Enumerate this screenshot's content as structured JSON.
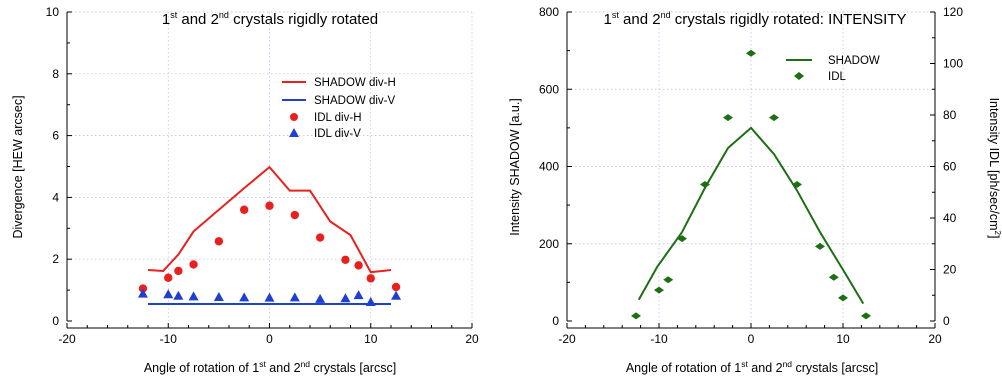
{
  "chart_data": [
    {
      "type": "scatter",
      "title": {
        "pre": "1",
        "sup1": "st",
        "mid": " and 2",
        "sup2": "nd",
        "post": " crystals rigidly rotated"
      },
      "xlabel": {
        "pre": "Angle of rotation of 1",
        "sup1": "st",
        "mid": " and 2",
        "sup2": "nd",
        "post": " crystals [arcsc]"
      },
      "ylabel": "Divergence [HEW arcsec]",
      "xlim": [
        -20,
        20
      ],
      "ylim": [
        0,
        10
      ],
      "xticks": [
        -20,
        -10,
        0,
        10,
        20
      ],
      "yticks": [
        0,
        2,
        4,
        6,
        8,
        10
      ],
      "grid": true,
      "legend_position": "right",
      "series": [
        {
          "name": "SHADOW div-H",
          "kind": "line",
          "color": "#e8211e",
          "x": [
            -12,
            -10.5,
            -9,
            -7.5,
            -5,
            -2.5,
            0,
            2.0,
            4.0,
            6.0,
            8.0,
            10.0,
            12.0
          ],
          "y": [
            1.65,
            1.62,
            2.15,
            2.9,
            3.6,
            4.3,
            4.98,
            4.22,
            4.22,
            3.22,
            2.78,
            1.58,
            1.65
          ]
        },
        {
          "name": "SHADOW div-V",
          "kind": "line",
          "color": "#1f3fd1",
          "x": [
            -12,
            12
          ],
          "y": [
            0.55,
            0.55
          ]
        },
        {
          "name": "IDL div-H",
          "kind": "circle",
          "color": "#e8211e",
          "x": [
            -12.5,
            -10,
            -9,
            -7.5,
            -5,
            -2.5,
            0,
            2.5,
            5,
            7.5,
            8.8,
            10,
            12.5
          ],
          "y": [
            1.05,
            1.4,
            1.62,
            1.83,
            2.58,
            3.6,
            3.73,
            3.43,
            2.7,
            1.98,
            1.8,
            1.38,
            1.1
          ]
        },
        {
          "name": "IDL div-V",
          "kind": "triangle",
          "color": "#1f3fd1",
          "x": [
            -12.5,
            -10,
            -9,
            -7.5,
            -5,
            -2.5,
            0,
            2.5,
            5,
            7.5,
            8.8,
            10,
            12.5
          ],
          "y": [
            0.87,
            0.85,
            0.8,
            0.78,
            0.76,
            0.75,
            0.74,
            0.75,
            0.7,
            0.72,
            0.82,
            0.6,
            0.8
          ]
        }
      ]
    },
    {
      "type": "line",
      "title": {
        "pre": "1",
        "sup1": "st",
        "mid": " and 2",
        "sup2": "nd",
        "post": " crystals rigidly rotated: INTENSITY"
      },
      "xlabel": {
        "pre": "Angle of rotation of 1",
        "sup1": "st",
        "mid": " and 2",
        "sup2": "nd",
        "post": " crystals [arcsc]"
      },
      "ylabel": "Intensity SHADOW [a.u.]",
      "y2label": {
        "pre": "Intensity IDL [ph/sec/cm",
        "sup": "2",
        "post": "]"
      },
      "xlim": [
        -20,
        20
      ],
      "ylim": [
        0,
        800
      ],
      "y2lim": [
        0,
        120
      ],
      "xticks": [
        -20,
        -10,
        0,
        10,
        20
      ],
      "yticks": [
        0,
        200,
        400,
        600,
        800
      ],
      "y2ticks": [
        0,
        20,
        40,
        60,
        80,
        100,
        120
      ],
      "grid": true,
      "legend_position": "top-right",
      "series": [
        {
          "name": "SHADOW",
          "kind": "line",
          "axis": "left",
          "color": "#1e6e14",
          "x": [
            -12.2,
            -10.2,
            -7.5,
            -5,
            -2.5,
            0,
            2.5,
            5,
            7.5,
            10.2,
            12.2
          ],
          "y": [
            55,
            140,
            230,
            345,
            448,
            500,
            432,
            338,
            230,
            125,
            45
          ]
        },
        {
          "name": "IDL",
          "kind": "diamond",
          "axis": "right",
          "color": "#1e6e14",
          "x": [
            -12.5,
            -10,
            -9,
            -7.5,
            -5,
            -2.5,
            0,
            2.5,
            5,
            7.5,
            9,
            10,
            12.5
          ],
          "y": [
            2,
            12,
            16,
            32,
            53,
            79,
            104,
            79,
            53,
            29,
            17,
            9,
            2
          ]
        }
      ]
    }
  ]
}
